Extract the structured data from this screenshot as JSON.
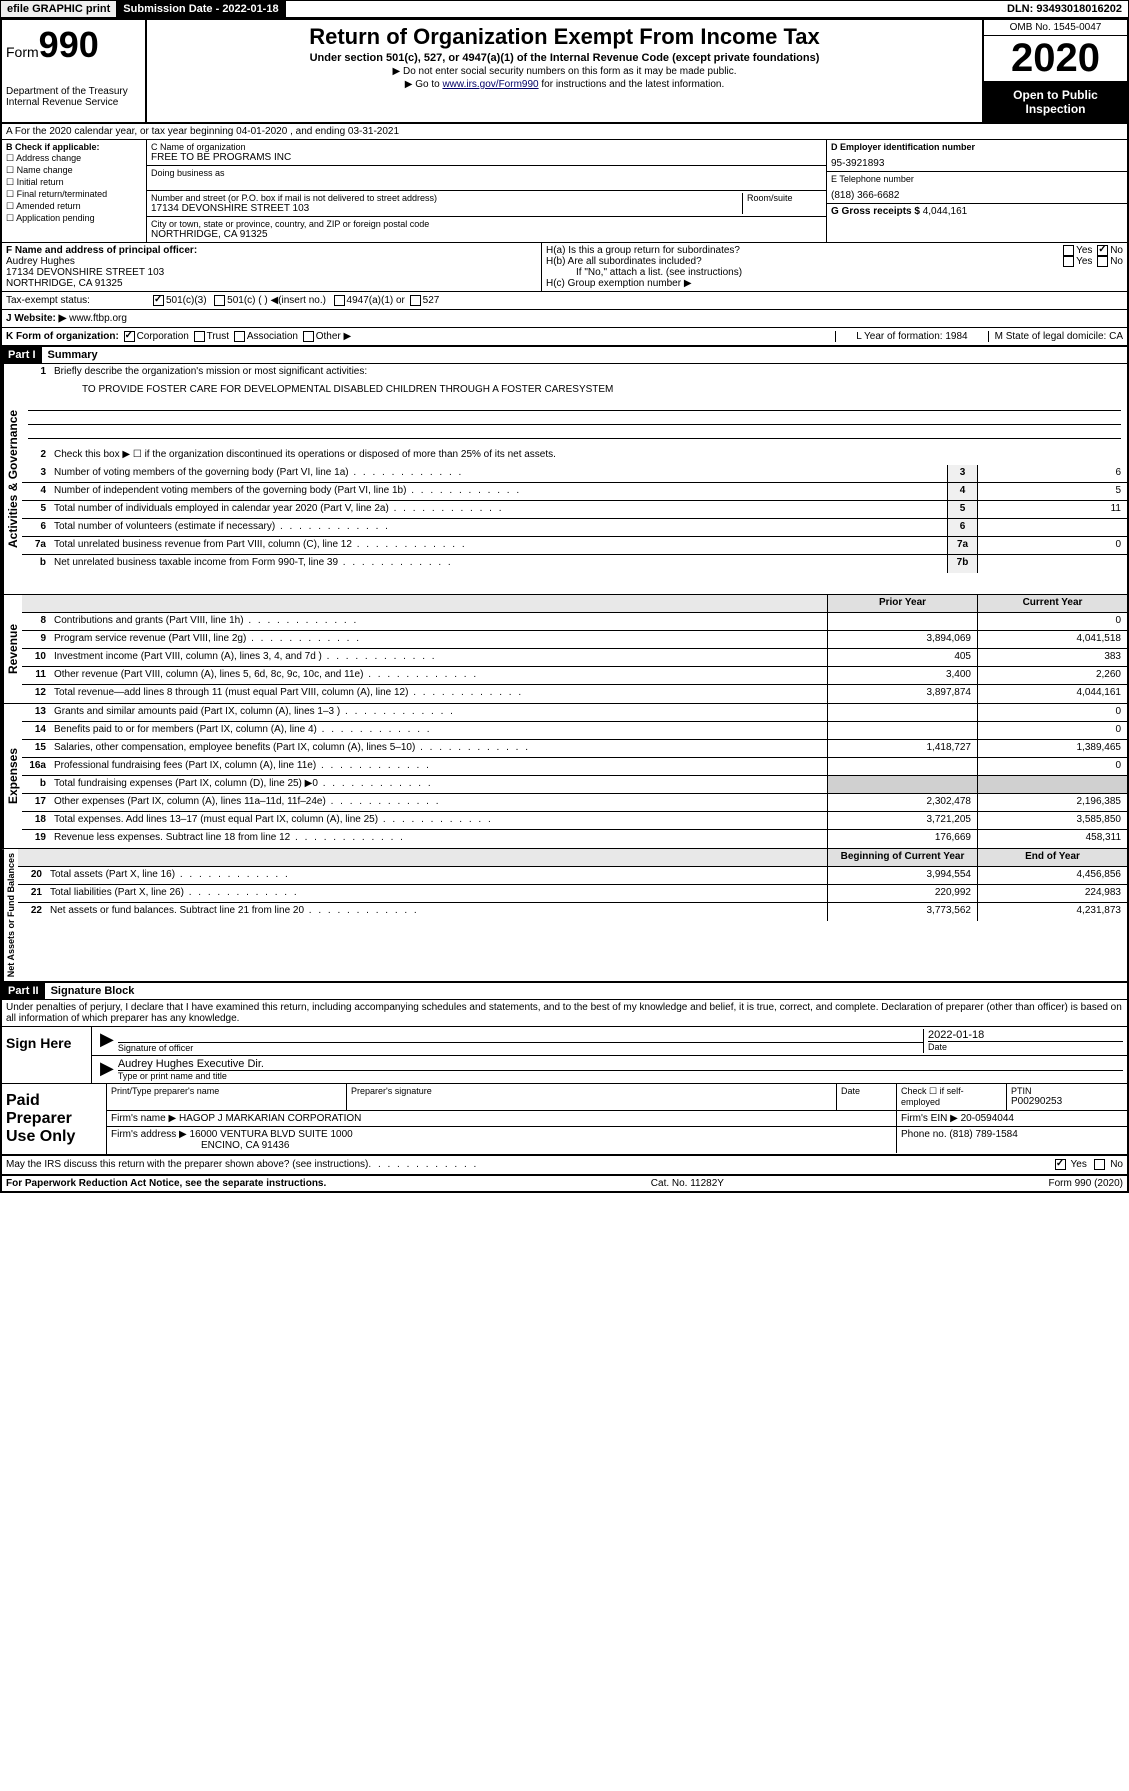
{
  "header": {
    "efile": "efile GRAPHIC print",
    "submission_label": "Submission Date - 2022-01-18",
    "dln": "DLN: 93493018016202"
  },
  "form": {
    "form_label": "Form",
    "form_num": "990",
    "title": "Return of Organization Exempt From Income Tax",
    "subtitle": "Under section 501(c), 527, or 4947(a)(1) of the Internal Revenue Code (except private foundations)",
    "note1": "▶ Do not enter social security numbers on this form as it may be made public.",
    "note2_pre": "▶ Go to ",
    "note2_link": "www.irs.gov/Form990",
    "note2_post": " for instructions and the latest information.",
    "dept": "Department of the Treasury Internal Revenue Service",
    "omb": "OMB No. 1545-0047",
    "year": "2020",
    "open": "Open to Public Inspection"
  },
  "section_a": "A For the 2020 calendar year, or tax year beginning 04-01-2020    , and ending 03-31-2021",
  "section_b": {
    "label": "B Check if applicable:",
    "opts": [
      "Address change",
      "Name change",
      "Initial return",
      "Final return/terminated",
      "Amended return",
      "Application pending"
    ]
  },
  "section_c": {
    "name_label": "C Name of organization",
    "name": "FREE TO BE PROGRAMS INC",
    "dba_label": "Doing business as",
    "addr_label": "Number and street (or P.O. box if mail is not delivered to street address)",
    "room_label": "Room/suite",
    "addr": "17134 DEVONSHIRE STREET 103",
    "city_label": "City or town, state or province, country, and ZIP or foreign postal code",
    "city": "NORTHRIDGE, CA  91325"
  },
  "section_d": {
    "ein_label": "D Employer identification number",
    "ein": "95-3921893",
    "phone_label": "E Telephone number",
    "phone": "(818) 366-6682",
    "gross_label": "G Gross receipts $",
    "gross": "4,044,161"
  },
  "section_f": {
    "label": "F  Name and address of principal officer:",
    "name": "Audrey Hughes",
    "addr1": "17134 DEVONSHIRE STREET 103",
    "addr2": "NORTHRIDGE, CA  91325"
  },
  "section_h": {
    "ha": "H(a)  Is this a group return for subordinates?",
    "hb": "H(b)  Are all subordinates included?",
    "hb_note": "If \"No,\" attach a list. (see instructions)",
    "hc": "H(c)  Group exemption number ▶",
    "yes": "Yes",
    "no": "No"
  },
  "tax_exempt": {
    "label": "Tax-exempt status:",
    "opt1": "501(c)(3)",
    "opt2": "501(c) (  ) ◀(insert no.)",
    "opt3": "4947(a)(1) or",
    "opt4": "527"
  },
  "website": {
    "label": "J    Website: ▶",
    "val": "www.ftbp.org"
  },
  "k_row": {
    "label": "K Form of organization:",
    "opts": [
      "Corporation",
      "Trust",
      "Association",
      "Other ▶"
    ],
    "l": "L Year of formation: 1984",
    "m": "M State of legal domicile: CA"
  },
  "part1": {
    "header": "Part I",
    "title": "Summary",
    "vl1": "Activities & Governance",
    "vl2": "Revenue",
    "vl3": "Expenses",
    "vl4": "Net Assets or Fund Balances",
    "q1": "Briefly describe the organization's mission or most significant activities:",
    "mission": "TO PROVIDE FOSTER CARE FOR DEVELOPMENTAL DISABLED CHILDREN THROUGH A FOSTER CARESYSTEM",
    "q2": "Check this box ▶ ☐  if the organization discontinued its operations or disposed of more than 25% of its net assets.",
    "lines_gov": [
      {
        "n": "3",
        "t": "Number of voting members of the governing body (Part VI, line 1a)",
        "box": "3",
        "v": "6"
      },
      {
        "n": "4",
        "t": "Number of independent voting members of the governing body (Part VI, line 1b)",
        "box": "4",
        "v": "5"
      },
      {
        "n": "5",
        "t": "Total number of individuals employed in calendar year 2020 (Part V, line 2a)",
        "box": "5",
        "v": "11"
      },
      {
        "n": "6",
        "t": "Total number of volunteers (estimate if necessary)",
        "box": "6",
        "v": ""
      },
      {
        "n": "7a",
        "t": "Total unrelated business revenue from Part VIII, column (C), line 12",
        "box": "7a",
        "v": "0"
      },
      {
        "n": "b",
        "t": "Net unrelated business taxable income from Form 990-T, line 39",
        "box": "7b",
        "v": ""
      }
    ],
    "col_prior": "Prior Year",
    "col_current": "Current Year",
    "lines_rev": [
      {
        "n": "8",
        "t": "Contributions and grants (Part VIII, line 1h)",
        "p": "",
        "c": "0"
      },
      {
        "n": "9",
        "t": "Program service revenue (Part VIII, line 2g)",
        "p": "3,894,069",
        "c": "4,041,518"
      },
      {
        "n": "10",
        "t": "Investment income (Part VIII, column (A), lines 3, 4, and 7d )",
        "p": "405",
        "c": "383"
      },
      {
        "n": "11",
        "t": "Other revenue (Part VIII, column (A), lines 5, 6d, 8c, 9c, 10c, and 11e)",
        "p": "3,400",
        "c": "2,260"
      },
      {
        "n": "12",
        "t": "Total revenue—add lines 8 through 11 (must equal Part VIII, column (A), line 12)",
        "p": "3,897,874",
        "c": "4,044,161"
      }
    ],
    "lines_exp": [
      {
        "n": "13",
        "t": "Grants and similar amounts paid (Part IX, column (A), lines 1–3 )",
        "p": "",
        "c": "0"
      },
      {
        "n": "14",
        "t": "Benefits paid to or for members (Part IX, column (A), line 4)",
        "p": "",
        "c": "0"
      },
      {
        "n": "15",
        "t": "Salaries, other compensation, employee benefits (Part IX, column (A), lines 5–10)",
        "p": "1,418,727",
        "c": "1,389,465"
      },
      {
        "n": "16a",
        "t": "Professional fundraising fees (Part IX, column (A), line 11e)",
        "p": "",
        "c": "0"
      },
      {
        "n": "b",
        "t": "Total fundraising expenses (Part IX, column (D), line 25) ▶0",
        "p": "",
        "c": "",
        "shade": true
      },
      {
        "n": "17",
        "t": "Other expenses (Part IX, column (A), lines 11a–11d, 11f–24e)",
        "p": "2,302,478",
        "c": "2,196,385"
      },
      {
        "n": "18",
        "t": "Total expenses. Add lines 13–17 (must equal Part IX, column (A), line 25)",
        "p": "3,721,205",
        "c": "3,585,850"
      },
      {
        "n": "19",
        "t": "Revenue less expenses. Subtract line 18 from line 12",
        "p": "176,669",
        "c": "458,311"
      }
    ],
    "col_begin": "Beginning of Current Year",
    "col_end": "End of Year",
    "lines_net": [
      {
        "n": "20",
        "t": "Total assets (Part X, line 16)",
        "p": "3,994,554",
        "c": "4,456,856"
      },
      {
        "n": "21",
        "t": "Total liabilities (Part X, line 26)",
        "p": "220,992",
        "c": "224,983"
      },
      {
        "n": "22",
        "t": "Net assets or fund balances. Subtract line 21 from line 20",
        "p": "3,773,562",
        "c": "4,231,873"
      }
    ]
  },
  "part2": {
    "header": "Part II",
    "title": "Signature Block",
    "perjury": "Under penalties of perjury, I declare that I have examined this return, including accompanying schedules and statements, and to the best of my knowledge and belief, it is true, correct, and complete. Declaration of preparer (other than officer) is based on all information of which preparer has any knowledge.",
    "sign_here": "Sign Here",
    "sig_officer": "Signature of officer",
    "date": "Date",
    "date_val": "2022-01-18",
    "officer_name": "Audrey Hughes  Executive Dir.",
    "type_name": "Type or print name and title",
    "paid": "Paid Preparer Use Only",
    "prep_name_label": "Print/Type preparer's name",
    "prep_sig_label": "Preparer's signature",
    "prep_date_label": "Date",
    "check_self": "Check ☐ if self-employed",
    "ptin_label": "PTIN",
    "ptin": "P00290253",
    "firm_name_label": "Firm's name    ▶",
    "firm_name": "HAGOP J MARKARIAN CORPORATION",
    "firm_ein_label": "Firm's EIN ▶",
    "firm_ein": "20-0594044",
    "firm_addr_label": "Firm's address ▶",
    "firm_addr1": "16000 VENTURA BLVD SUITE 1000",
    "firm_addr2": "ENCINO, CA  91436",
    "firm_phone_label": "Phone no.",
    "firm_phone": "(818) 789-1584",
    "discuss": "May the IRS discuss this return with the preparer shown above? (see instructions)"
  },
  "footer": {
    "paperwork": "For Paperwork Reduction Act Notice, see the separate instructions.",
    "cat": "Cat. No. 11282Y",
    "form": "Form 990 (2020)"
  }
}
